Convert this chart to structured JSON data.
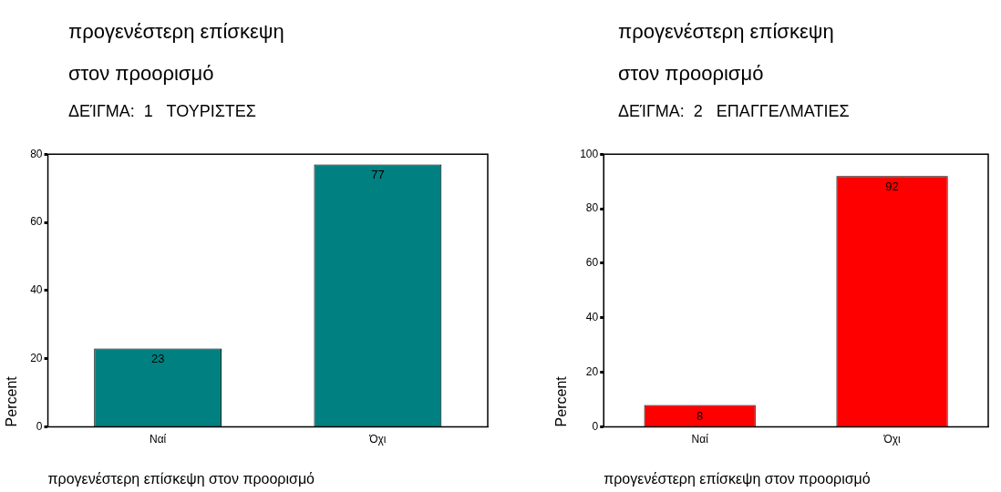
{
  "chart_data": [
    {
      "type": "bar",
      "title": "προγενέστερη επίσκεψη στον προορισμό",
      "subtitle": "ΔΕΊΓΜΑ:  1   ΤΟΥΡΙΣΤΕΣ",
      "xlabel": "προγενέστερη επίσκεψη στον προορισμό",
      "ylabel": "Percent",
      "categories": [
        "Ναί",
        "Όχι"
      ],
      "values": [
        23,
        77
      ],
      "color": "#008080",
      "ylim": [
        0,
        80
      ],
      "yticks": [
        0,
        20,
        40,
        60,
        80
      ],
      "grid": false,
      "data_labels": true
    },
    {
      "type": "bar",
      "title": "προγενέστερη επίσκεψη στον προορισμό",
      "subtitle": "ΔΕΊΓΜΑ:  2   ΕΠΑΓΓΕΛΜΑΤΙΕΣ",
      "xlabel": "προγενέστερη επίσκεψη στον προορισμό",
      "ylabel": "Percent",
      "categories": [
        "Ναί",
        "Όχι"
      ],
      "values": [
        8,
        92
      ],
      "color": "#ff0000",
      "ylim": [
        0,
        100
      ],
      "yticks": [
        0,
        20,
        40,
        60,
        80,
        100
      ],
      "grid": false,
      "data_labels": true
    }
  ]
}
